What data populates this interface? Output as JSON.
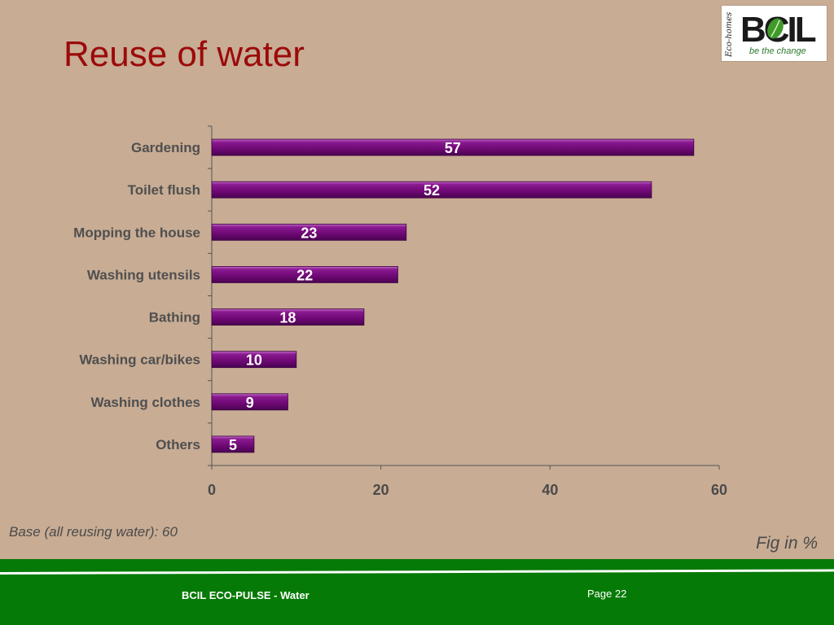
{
  "slide": {
    "title": "Reuse of water",
    "footnote": "Base (all reusing water): 60",
    "unit_note": "Fig in %"
  },
  "logo": {
    "side_text": "Eco-homes",
    "wordmark": "BCIL",
    "tagline": "be the change"
  },
  "footer": {
    "left_text": "BCIL ECO-PULSE - Water",
    "page_text": "Page 22"
  },
  "colors": {
    "bar_fill": "#7a0a7e",
    "title": "#9b0a0a",
    "footer_bg": "#067a06",
    "background": "#c8ac94"
  },
  "chart_data": {
    "type": "bar",
    "orientation": "horizontal",
    "categories": [
      "Gardening",
      "Toilet flush",
      "Mopping the house",
      "Washing utensils",
      "Bathing",
      "Washing car/bikes",
      "Washing clothes",
      "Others"
    ],
    "values": [
      57,
      52,
      23,
      22,
      18,
      10,
      9,
      5
    ],
    "data_labels": [
      "57",
      "52",
      "23",
      "22",
      "18",
      "10",
      "9",
      "5"
    ],
    "xticks": [
      "0",
      "20",
      "40",
      "60"
    ],
    "xtick_values": [
      0,
      20,
      40,
      60
    ],
    "xlim": [
      0,
      60
    ],
    "grid": false,
    "legend": "none"
  }
}
